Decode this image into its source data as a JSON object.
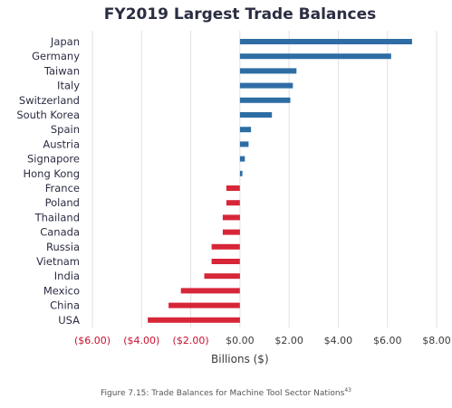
{
  "caption": {
    "text": "Figure 7.15: Trade Balances for Machine Tool Sector Nations",
    "note": "43"
  },
  "chart_data": {
    "type": "bar",
    "orientation": "horizontal",
    "title": "FY2019 Largest Trade Balances",
    "xlabel": "Billions ($)",
    "ylabel": "",
    "xlim": [
      -6,
      8
    ],
    "grid": true,
    "legend": "none",
    "colors": {
      "positive": "#2e6da4",
      "negative": "#d72638",
      "grid": "#e2e2e2",
      "title": "#2b2d42",
      "tick_positive": "#3a3a3a",
      "tick_negative": "#c8102e"
    },
    "categories": [
      "Japan",
      "Germany",
      "Taiwan",
      "Italy",
      "Switzerland",
      "South Korea",
      "Spain",
      "Austria",
      "Signapore",
      "Hong Kong",
      "France",
      "Poland",
      "Thailand",
      "Canada",
      "Russia",
      "Vietnam",
      "India",
      "Mexico",
      "China",
      "USA"
    ],
    "values": [
      7.0,
      6.15,
      2.3,
      2.15,
      2.05,
      1.3,
      0.45,
      0.35,
      0.2,
      0.1,
      -0.55,
      -0.55,
      -0.7,
      -0.7,
      -1.15,
      -1.15,
      -1.45,
      -2.4,
      -2.9,
      -3.75
    ],
    "ticks": [
      {
        "value": -6,
        "label": "($6.00)"
      },
      {
        "value": -4,
        "label": "($4.00)"
      },
      {
        "value": -2,
        "label": "($2.00)"
      },
      {
        "value": 0,
        "label": "$0.00"
      },
      {
        "value": 2,
        "label": "$2.00"
      },
      {
        "value": 4,
        "label": "$4.00"
      },
      {
        "value": 6,
        "label": "$6.00"
      },
      {
        "value": 8,
        "label": "$8.00"
      }
    ]
  }
}
